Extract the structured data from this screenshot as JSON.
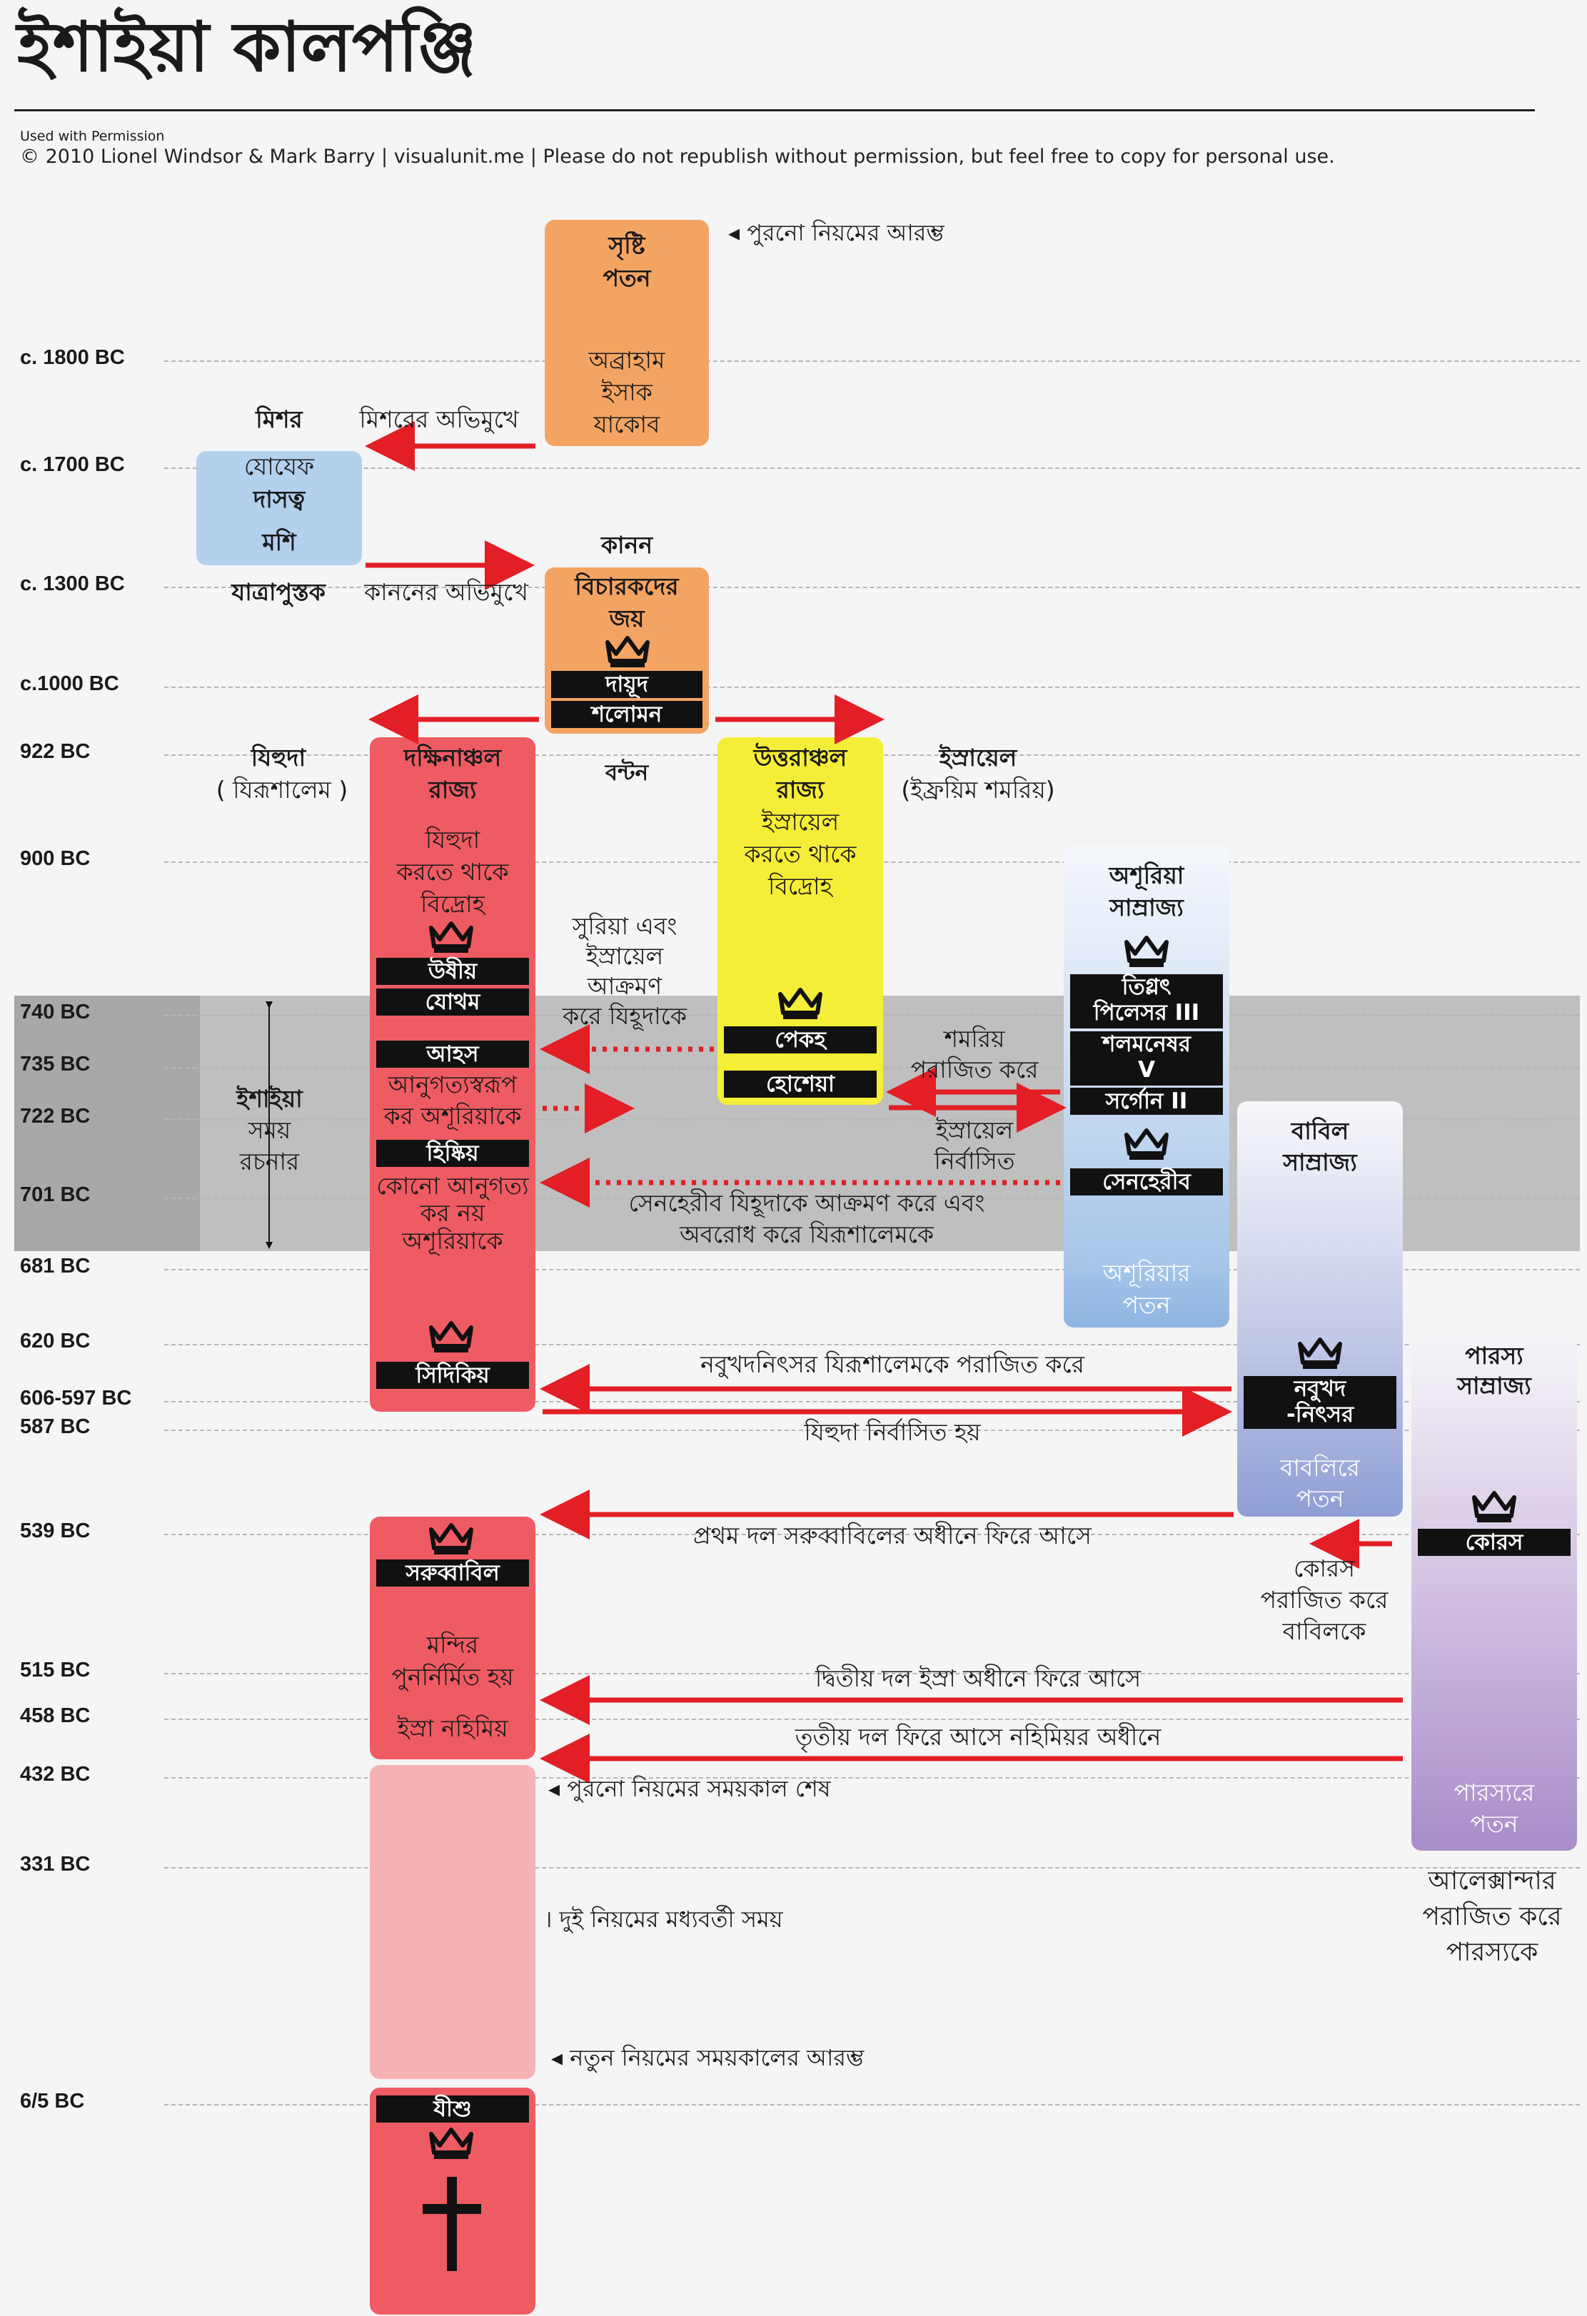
{
  "header": {
    "title": "ইশাইয়া কালপঞ্জি",
    "permission": "Used with Permission",
    "credit": "© 2010 Lionel Windsor & Mark Barry | visualunit.me | Please do not republish without permission, but feel free to copy for personal use."
  },
  "years": [
    "c. 1800 BC",
    "c. 1700 BC",
    "c. 1300 BC",
    "c.1000 BC",
    "922 BC",
    "900 BC",
    "740 BC",
    "735 BC",
    "722 BC",
    "701 BC",
    "681 BC",
    "620 BC",
    "606-597 BC",
    "587 BC",
    "539 BC",
    "515 BC",
    "458 BC",
    "432 BC",
    "331 BC",
    "6/5 BC"
  ],
  "colors": {
    "orange": "#f4a462",
    "blue": "#b3d0ec",
    "red": "#ef5b63",
    "pink": "#f4b2b5",
    "yellow": "#f5ee38",
    "arrow": "#e31e25",
    "grey_band": "#ababab"
  },
  "ot": {
    "start": "◂ পুরনো নিয়মের আরম্ভ",
    "box1_a": "সৃষ্টি",
    "box1_b": "পতন",
    "box1_c": "অব্রাহাম",
    "box1_d": "ইসাক",
    "box1_e": "যাকোব",
    "egypt": "মিশর",
    "to_egypt": "মিশরের অভিমুখে",
    "egypt_a": "যোযেফ",
    "egypt_b": "দাসত্ব",
    "egypt_c": "মশি",
    "canaan": "কানন",
    "exodus": "যাত্রাপুস্তক",
    "to_canaan": "কাননের অভিমুখে",
    "judges": "বিচারকদের",
    "conquest": "জয়",
    "david": "দায়ূদ",
    "solomon": "শলোমন",
    "division": "বন্টন"
  },
  "judah": {
    "name": "যিহুদা",
    "capital": "( যিরূশালেম )",
    "kingdom_a": "দক্ষিনাঞ্চল",
    "kingdom_b": "রাজ্য",
    "rebel_a": "যিহুদা",
    "rebel_b": "করতে থাকে",
    "rebel_c": "বিদ্রোহ",
    "uzziah": "উষীয়",
    "jotham": "যোথম",
    "ahaz": "আহস",
    "submit_a": "আনুগত্যস্বরূপ",
    "submit_b": "কর অশূরিয়াকে",
    "hezekiah": "হিষ্কিয়",
    "nosubmit_a": "কোনো আনুগত্য",
    "nosubmit_b": "কর নয়",
    "nosubmit_c": "অশূরিয়াকে",
    "zedekiah": "সিদিকিয়",
    "zerubbabel": "সরুব্বাবিল",
    "temple_a": "মন্দির",
    "temple_b": "পুনর্নির্মিত হয়",
    "ezra_neh": "ইস্রা নহিমিয়",
    "jesus": "যীশু"
  },
  "israel": {
    "name": "ইস্রায়েল",
    "capital": "(ইফ্রয়িম শমরিয়)",
    "kingdom_a": "উত্তরাঞ্চল",
    "kingdom_b": "রাজ্য",
    "rebel_a": "ইস্রায়েল",
    "rebel_b": "করতে থাকে",
    "rebel_c": "বিদ্রোহ",
    "pekah": "পেকহ",
    "hoshea": "হোশেয়া"
  },
  "isaiah": {
    "a": "ইশাইয়া",
    "b": "সময়",
    "c": "রচনার"
  },
  "syria_attack": {
    "a": "সুরিয়া এবং",
    "b": "ইস্রায়েল",
    "c": "আক্রমণ",
    "d": "করে যিহূদাকে"
  },
  "assyria": {
    "name_a": "অশূরিয়া",
    "name_b": "সাম্রাজ্য",
    "tiglath_a": "তিগ্লৎ",
    "tiglath_b": "পিলেসর III",
    "shalmaneser_a": "শলমনেষর",
    "shalmaneser_b": "V",
    "sargon": "সর্গোন II",
    "sennacherib": "সেনহেরীব",
    "fall_a": "অশূরিয়ার",
    "fall_b": "পতন",
    "samaria_a": "শমরিয়",
    "samaria_b": "পরাজিত করে",
    "exile_a": "ইস্রায়েল",
    "exile_b": "নির্বাসিত",
    "sennacherib_a": "সেনহেরীব যিহূদাকে আক্রমণ করে এবং",
    "sennacherib_b": "অবরোধ করে যিরূশালেমকে"
  },
  "babylon": {
    "name_a": "বাবিল",
    "name_b": "সাম্রাজ্য",
    "neb_a": "নবুখদ",
    "neb_b": "-নিৎসর",
    "fall_a": "বাবলিরে",
    "fall_b": "পতন",
    "conquer": "নবুখদনিৎসর যিরূশালেমকে পরাজিত করে",
    "exile": "যিহুদা নির্বাসিত হয়",
    "return1": "প্রথম দল সরুব্বাবিলের অধীনে ফিরে আসে"
  },
  "persia": {
    "name_a": "পারস্য",
    "name_b": "সাম্রাজ্য",
    "cyrus": "কোরস",
    "cyrus_a": "কোরস",
    "cyrus_b": "পরাজিত করে",
    "cyrus_c": "বাবিলকে",
    "return2": "দ্বিতীয় দল ইস্রা অধীনে ফিরে আসে",
    "return3": "তৃতীয় দল ফিরে আসে নহিমিয়র অধীনে",
    "fall_a": "পারস্যরে",
    "fall_b": "পতন",
    "alex_a": "আলেক্সান্দার",
    "alex_b": "পরাজিত করে",
    "alex_c": "পারস্যকে"
  },
  "end_ot": "◂ পুরনো নিয়মের সময়কাল শেষ",
  "intertestamental": "। দুই নিয়মের মধ্যবর্তী সময়",
  "start_nt": "◂ নতুন নিয়মের সময়কালের আরম্ভ"
}
